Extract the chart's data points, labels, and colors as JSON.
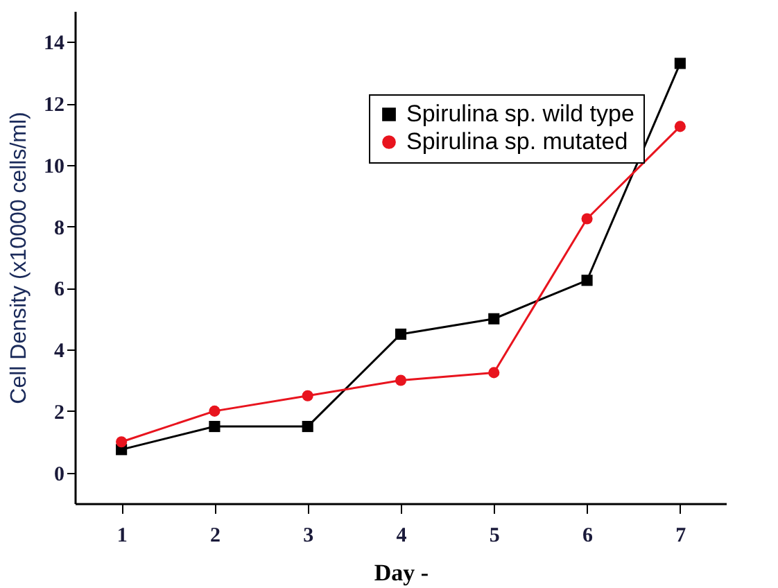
{
  "chart_data": {
    "type": "line",
    "xlabel": "Day -",
    "ylabel": "Cell Density (x10000 cells/ml)",
    "x": [
      1,
      2,
      3,
      4,
      5,
      6,
      7
    ],
    "series": [
      {
        "name": "Spirulina sp. wild type",
        "color": "#000000",
        "marker": "square",
        "values": [
          0.75,
          1.5,
          1.5,
          4.5,
          5,
          6.25,
          13.3
        ]
      },
      {
        "name": "Spirulina sp. mutated",
        "color": "#e8141e",
        "marker": "circle",
        "values": [
          1,
          2,
          2.5,
          3,
          3.25,
          8.25,
          11.25
        ]
      }
    ],
    "xlim": [
      0.5,
      7.5
    ],
    "xticks": [
      1,
      2,
      3,
      4,
      5,
      6,
      7
    ],
    "ylim": [
      -1,
      15
    ],
    "yticks": [
      0,
      2,
      4,
      6,
      8,
      10,
      12,
      14
    ],
    "grid": false,
    "legend": "top right"
  }
}
